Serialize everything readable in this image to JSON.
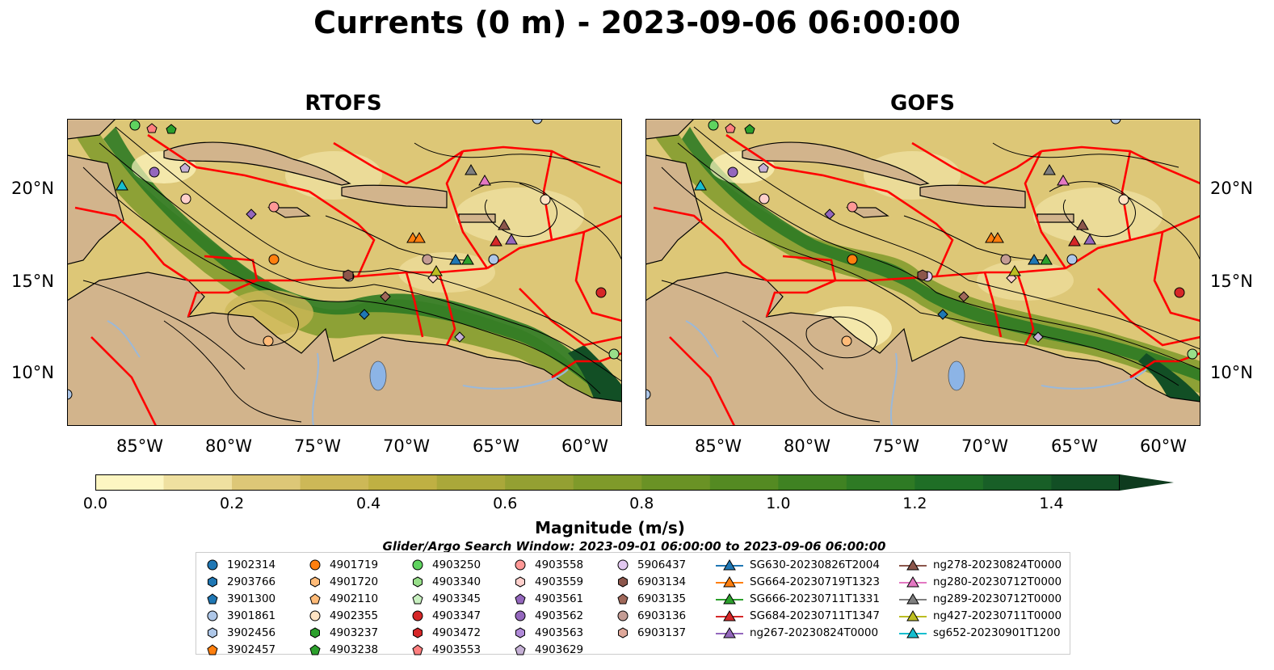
{
  "title": "Currents (0 m) - 2023-09-06 06:00:00",
  "panels": [
    {
      "name": "RTOFS"
    },
    {
      "name": "GOFS"
    }
  ],
  "axes": {
    "lat_labels": [
      "20°N",
      "15°N",
      "10°N"
    ],
    "lon_labels": [
      "85°W",
      "80°W",
      "75°W",
      "70°W",
      "65°W",
      "60°W"
    ],
    "lon_range": [
      -89.5,
      -58.0
    ],
    "lat_range": [
      7.0,
      23.8
    ]
  },
  "colorbar": {
    "label": "Magnitude (m/s)",
    "ticks": [
      "0.0",
      "0.2",
      "0.4",
      "0.6",
      "0.8",
      "1.0",
      "1.2",
      "1.4"
    ],
    "min": 0.0,
    "max": 1.5,
    "step": 0.1,
    "colors": [
      "#fdf6c2",
      "#efe0a0",
      "#ddc777",
      "#cdb857",
      "#bfb043",
      "#aaa83a",
      "#94a032",
      "#7f9a2a",
      "#6a9225",
      "#548a22",
      "#3f8222",
      "#2e7a24",
      "#1f6e26",
      "#185f27",
      "#124f25",
      "#0e3b1e"
    ]
  },
  "search_window": "Glider/Argo Search Window: 2023-09-01 06:00:00 to 2023-09-06 06:00:00",
  "legend": {
    "columns": [
      [
        {
          "label": "1902314",
          "shape": "circle",
          "color": "#1f77b4"
        },
        {
          "label": "2903766",
          "shape": "hexagon",
          "color": "#1f77b4"
        },
        {
          "label": "3901300",
          "shape": "pentagon",
          "color": "#1f77b4"
        },
        {
          "label": "3901861",
          "shape": "circle",
          "color": "#aec7e8"
        },
        {
          "label": "3902456",
          "shape": "hexagon",
          "color": "#aec7e8"
        },
        {
          "label": "3902457",
          "shape": "pentagon",
          "color": "#ff7f0e"
        }
      ],
      [
        {
          "label": "4901719",
          "shape": "circle",
          "color": "#ff7f0e"
        },
        {
          "label": "4901720",
          "shape": "hexagon",
          "color": "#ffbb78"
        },
        {
          "label": "4902110",
          "shape": "pentagon",
          "color": "#ffbb78"
        },
        {
          "label": "4902355",
          "shape": "circle",
          "color": "#ffe4c4"
        },
        {
          "label": "4903237",
          "shape": "hexagon",
          "color": "#2ca02c"
        },
        {
          "label": "4903238",
          "shape": "pentagon",
          "color": "#2ca02c"
        }
      ],
      [
        {
          "label": "4903250",
          "shape": "circle",
          "color": "#5fd35f"
        },
        {
          "label": "4903340",
          "shape": "hexagon",
          "color": "#98df8a"
        },
        {
          "label": "4903345",
          "shape": "pentagon",
          "color": "#c8f0c0"
        },
        {
          "label": "4903347",
          "shape": "circle",
          "color": "#d62728"
        },
        {
          "label": "4903472",
          "shape": "hexagon",
          "color": "#d62728"
        },
        {
          "label": "4903553",
          "shape": "pentagon",
          "color": "#ff7f7f"
        }
      ],
      [
        {
          "label": "4903558",
          "shape": "circle",
          "color": "#ff9896"
        },
        {
          "label": "4903559",
          "shape": "hexagon",
          "color": "#ffd0cc"
        },
        {
          "label": "4903561",
          "shape": "pentagon",
          "color": "#9467bd"
        },
        {
          "label": "4903562",
          "shape": "circle",
          "color": "#9467bd"
        },
        {
          "label": "4903563",
          "shape": "hexagon",
          "color": "#b08ad8"
        },
        {
          "label": "4903629",
          "shape": "pentagon",
          "color": "#c5b0d5"
        }
      ],
      [
        {
          "label": "5906437",
          "shape": "circle",
          "color": "#e2c8f0"
        },
        {
          "label": "6903134",
          "shape": "hexagon",
          "color": "#8c564b"
        },
        {
          "label": "6903135",
          "shape": "pentagon",
          "color": "#a0685a"
        },
        {
          "label": "6903136",
          "shape": "circle",
          "color": "#c49c94"
        },
        {
          "label": "6903137",
          "shape": "hexagon",
          "color": "#dfa89a"
        }
      ],
      [
        {
          "label": "SG630-20230826T2004",
          "shape": "triangle",
          "color": "#1f77b4"
        },
        {
          "label": "SG664-20230719T1323",
          "shape": "triangle",
          "color": "#ff7f0e"
        },
        {
          "label": "SG666-20230711T1331",
          "shape": "triangle",
          "color": "#2ca02c"
        },
        {
          "label": "SG684-20230711T1347",
          "shape": "triangle",
          "color": "#d62728"
        },
        {
          "label": "ng267-20230824T0000",
          "shape": "triangle",
          "color": "#9467bd"
        }
      ],
      [
        {
          "label": "ng278-20230824T0000",
          "shape": "triangle",
          "color": "#8c564b"
        },
        {
          "label": "ng280-20230712T0000",
          "shape": "triangle",
          "color": "#e377c2"
        },
        {
          "label": "ng289-20230712T0000",
          "shape": "triangle",
          "color": "#7f7f7f"
        },
        {
          "label": "ng427-20230711T0000",
          "shape": "triangle",
          "color": "#bcbd22"
        },
        {
          "label": "sg652-20230901T1200",
          "shape": "triangle",
          "color": "#17becf"
        }
      ]
    ]
  },
  "map_colors": {
    "land": "#d2b48c",
    "eez": "#ff0000",
    "lake": "#8cb4e6",
    "river": "#9bb8d8"
  }
}
